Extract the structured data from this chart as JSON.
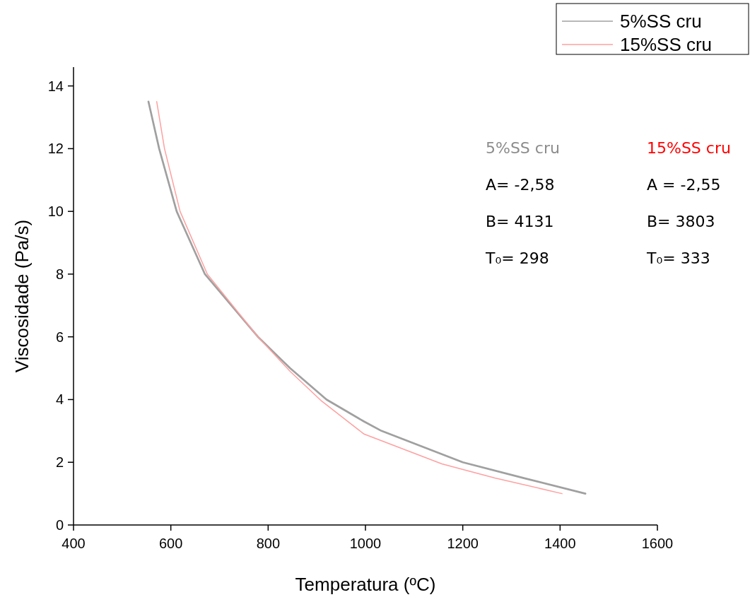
{
  "chart_data": {
    "type": "line",
    "xlabel": "Temperatura (ºC)",
    "ylabel": "Viscosidade (Pa/s)",
    "xlim": [
      400,
      1600
    ],
    "xticks": [
      400,
      600,
      800,
      1000,
      1200,
      1400,
      1600
    ],
    "ylim": [
      0,
      14.6
    ],
    "yticks": [
      0,
      2,
      4,
      6,
      8,
      10,
      12,
      14
    ],
    "grid": false,
    "legend": "top right",
    "marker": "none",
    "line_style": "solid",
    "series": [
      {
        "name": "5%SS cru",
        "color": "#a0a0a0",
        "x": [
          554,
          576,
          612,
          670,
          779,
          845,
          920,
          997,
          1033,
          1200,
          1324,
          1452
        ],
        "values": [
          13.5,
          12,
          10,
          8,
          6,
          5,
          4,
          3.3,
          3,
          2,
          1.5,
          1
        ]
      },
      {
        "name": "15%SS cru",
        "color": "#ffa0a0",
        "x": [
          571,
          587,
          619,
          675,
          779,
          845,
          910,
          997,
          1157,
          1266,
          1404
        ],
        "values": [
          13.5,
          12,
          10,
          8,
          6,
          4.9,
          3.95,
          2.9,
          1.95,
          1.5,
          1
        ]
      }
    ],
    "annotations": [
      "5%SS cru",
      "A= -2,58",
      "B= 4131",
      "T₀= 298",
      "15%SS cru",
      "A = -2,55",
      "B= 3803",
      "T₀= 333"
    ]
  }
}
